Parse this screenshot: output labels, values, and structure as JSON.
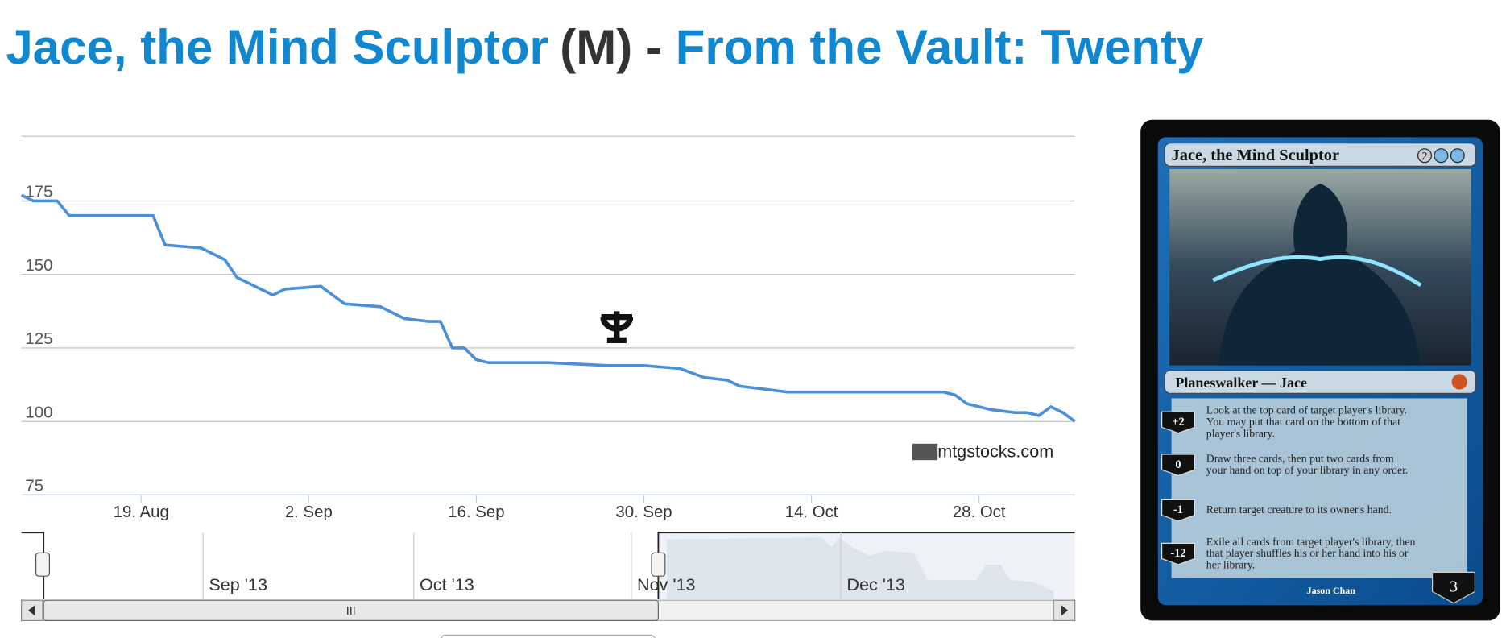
{
  "header": {
    "card_name": "Jace, the Mind Sculptor",
    "open_paren": "(",
    "rarity": "M",
    "close_paren": ")",
    "separator": "-",
    "set_name": "From the Vault: Twenty"
  },
  "chart_data": {
    "type": "line",
    "x": [
      "2013-08-09",
      "2013-08-10",
      "2013-08-12",
      "2013-08-13",
      "2013-08-20",
      "2013-08-21",
      "2013-08-24",
      "2013-08-26",
      "2013-08-27",
      "2013-08-28",
      "2013-08-30",
      "2013-08-31",
      "2013-09-03",
      "2013-09-05",
      "2013-09-08",
      "2013-09-10",
      "2013-09-12",
      "2013-09-13",
      "2013-09-14",
      "2013-09-15",
      "2013-09-16",
      "2013-09-17",
      "2013-09-20",
      "2013-09-22",
      "2013-09-27",
      "2013-09-30",
      "2013-10-03",
      "2013-10-05",
      "2013-10-07",
      "2013-10-08",
      "2013-10-12",
      "2013-10-15",
      "2013-10-25",
      "2013-10-26",
      "2013-10-27",
      "2013-10-29",
      "2013-10-31",
      "2013-11-01",
      "2013-11-02",
      "2013-11-03",
      "2013-11-04",
      "2013-11-05"
    ],
    "series": [
      {
        "color": "#4a8fd9",
        "values": [
          177,
          175,
          175,
          170,
          170,
          160,
          159,
          155,
          149,
          147,
          143,
          145,
          146,
          140,
          139,
          135,
          134,
          134,
          125,
          125,
          121,
          120,
          120,
          120,
          119,
          119,
          118,
          115,
          114,
          112,
          110,
          110,
          110,
          109,
          106,
          104,
          103,
          103,
          102,
          105,
          103,
          100
        ]
      }
    ],
    "xlim": [
      "2013-08-09",
      "2013-11-05"
    ],
    "xticks": [
      {
        "value": "2013-08-19",
        "label": "19. Aug"
      },
      {
        "value": "2013-09-02",
        "label": "2. Sep"
      },
      {
        "value": "2013-09-16",
        "label": "16. Sep"
      },
      {
        "value": "2013-09-30",
        "label": "30. Sep"
      },
      {
        "value": "2013-10-14",
        "label": "14. Oct"
      },
      {
        "value": "2013-10-28",
        "label": "28. Oct"
      }
    ],
    "ylim": [
      75,
      197
    ],
    "yticks": [
      75,
      100,
      125,
      150,
      175
    ],
    "grid": true,
    "watermark": "mtgstocks.com",
    "navigator_labels": [
      "Sep '13",
      "Oct '13",
      "Nov '13",
      "Dec '13"
    ],
    "scrollbar_grip": "III"
  },
  "card": {
    "name": "Jace, the Mind Sculptor",
    "cost": "2",
    "type_line": "Planeswalker — Jace",
    "abilities": [
      {
        "loyalty": "+2",
        "text": [
          "Look at the top card of target player's library.",
          "You may put that card on the bottom of that",
          "player's library."
        ]
      },
      {
        "loyalty": "0",
        "text": [
          "Draw three cards, then put two cards from",
          "your hand on top of your library in any order."
        ]
      },
      {
        "loyalty": "-1",
        "text": [
          "Return target creature to its owner's hand."
        ]
      },
      {
        "loyalty": "-12",
        "text": [
          "Exile all cards from target player's library, then",
          "that player shuffles his or her hand into his or",
          "her library."
        ]
      }
    ],
    "artist": "Jason Chan",
    "starting_loyalty": "3"
  }
}
